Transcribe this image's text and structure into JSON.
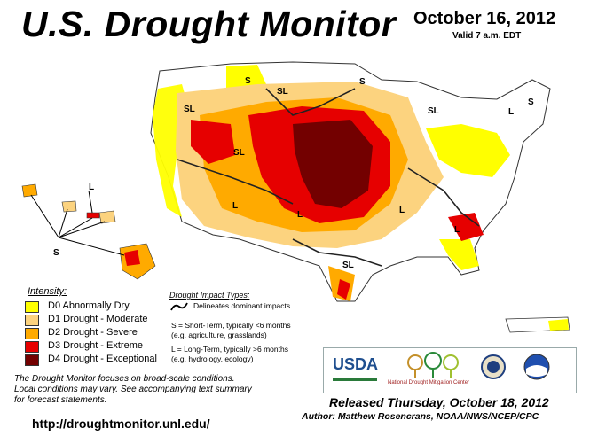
{
  "title": "U.S. Drought Monitor",
  "date": "October 16, 2012",
  "valid": "Valid 7 a.m. EDT",
  "legend": {
    "title": "Intensity:",
    "items": [
      {
        "label": "D0 Abnormally Dry",
        "color": "#ffff00"
      },
      {
        "label": "D1 Drought - Moderate",
        "color": "#fcd37f"
      },
      {
        "label": "D2 Drought - Severe",
        "color": "#ffaa00"
      },
      {
        "label": "D3 Drought - Extreme",
        "color": "#e60000"
      },
      {
        "label": "D4 Drought - Exceptional",
        "color": "#730000"
      }
    ]
  },
  "impact": {
    "title": "Drought Impact Types:",
    "line1": "Delineates dominant impacts",
    "line2": "S = Short-Term, typically <6 months",
    "line3": "(e.g. agriculture, grasslands)",
    "line4": "L = Long-Term, typically >6 months",
    "line5": "(e.g. hydrology, ecology)"
  },
  "disclaimer": {
    "line1": "The Drought Monitor focuses on broad-scale conditions.",
    "line2": "Local conditions may vary. See accompanying text summary",
    "line3": "for forecast statements."
  },
  "url": "http://droughtmonitor.unl.edu/",
  "released": "Released Thursday, October 18, 2012",
  "author": "Author: Matthew Rosencrans, NOAA/NWS/NCEP/CPC",
  "logos": {
    "usda": "USDA",
    "ndmc": "National Drought Mitigation Center"
  },
  "map_labels": {
    "s": "S",
    "l": "L",
    "sl": "SL"
  }
}
